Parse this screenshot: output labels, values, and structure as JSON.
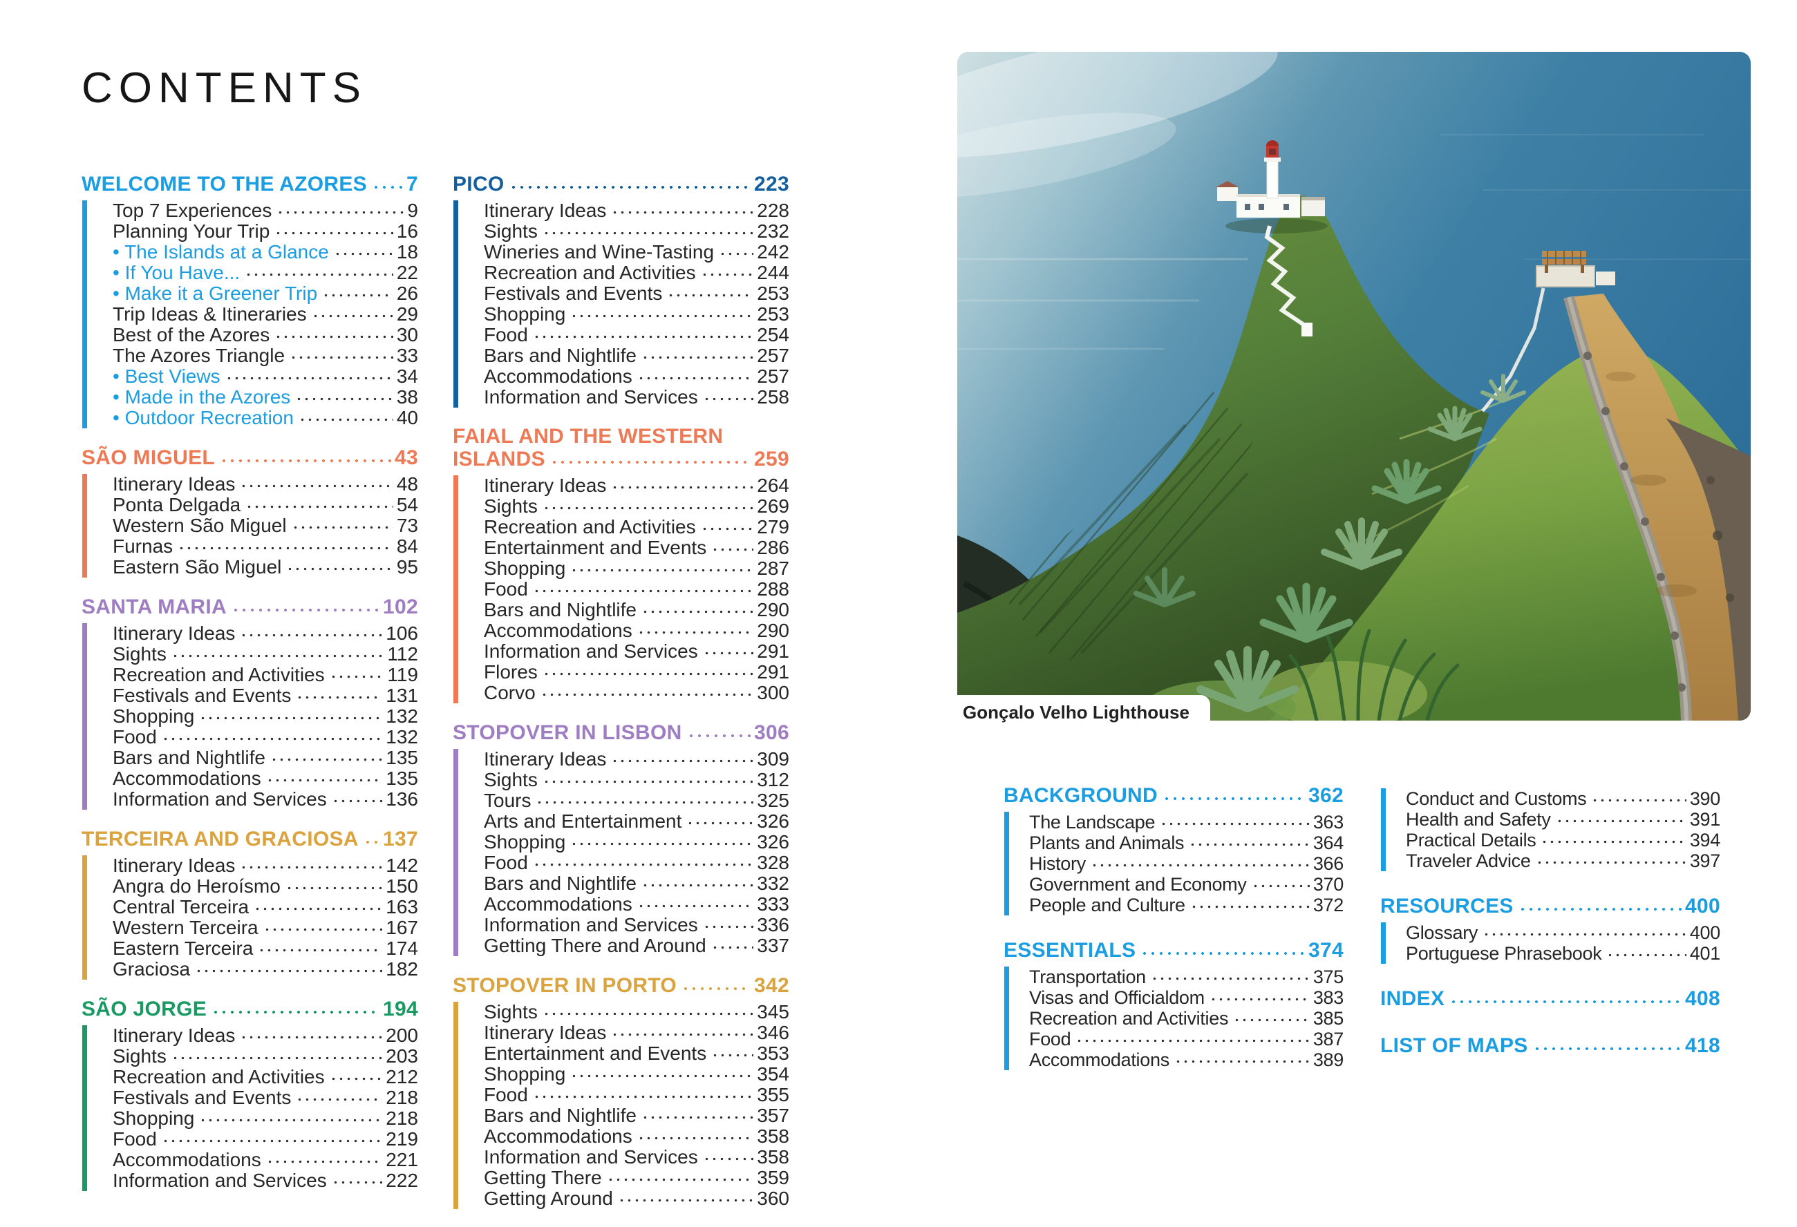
{
  "title": "CONTENTS",
  "photo": {
    "caption": "Gonçalo Velho Lighthouse"
  },
  "colors": {
    "bright_blue": "#1b9de2",
    "dark_blue": "#14609f",
    "orange": "#ee7a55",
    "purple": "#9f7dc3",
    "amber": "#dba33e",
    "green": "#189a62",
    "ink": "#2d2d2d"
  },
  "columns": {
    "col1": [
      {
        "title": "WELCOME TO THE AZORES",
        "page": "7",
        "color": "bright_blue",
        "items": [
          {
            "label": "Top 7 Experiences",
            "page": "9"
          },
          {
            "label": "Planning Your Trip",
            "page": "16"
          },
          {
            "label": "The Islands at a Glance",
            "page": "18",
            "bullet": true
          },
          {
            "label": "If You Have...",
            "page": "22",
            "bullet": true
          },
          {
            "label": "Make it a Greener Trip",
            "page": "26",
            "bullet": true
          },
          {
            "label": "Trip Ideas & Itineraries",
            "page": "29"
          },
          {
            "label": "Best of the Azores",
            "page": "30"
          },
          {
            "label": "The Azores Triangle",
            "page": "33"
          },
          {
            "label": "Best Views",
            "page": "34",
            "bullet": true
          },
          {
            "label": "Made in the Azores",
            "page": "38",
            "bullet": true
          },
          {
            "label": "Outdoor Recreation",
            "page": "40",
            "bullet": true
          }
        ]
      },
      {
        "title": "SÃO MIGUEL",
        "page": "43",
        "color": "orange",
        "items": [
          {
            "label": "Itinerary Ideas",
            "page": "48"
          },
          {
            "label": "Ponta Delgada",
            "page": "54"
          },
          {
            "label": "Western São Miguel",
            "page": "73"
          },
          {
            "label": "Furnas",
            "page": "84"
          },
          {
            "label": "Eastern São Miguel",
            "page": "95"
          }
        ]
      },
      {
        "title": "SANTA MARIA",
        "page": "102",
        "color": "purple",
        "items": [
          {
            "label": "Itinerary Ideas",
            "page": "106"
          },
          {
            "label": "Sights",
            "page": "112"
          },
          {
            "label": "Recreation and Activities",
            "page": "119"
          },
          {
            "label": "Festivals and Events",
            "page": "131"
          },
          {
            "label": "Shopping",
            "page": "132"
          },
          {
            "label": "Food",
            "page": "132"
          },
          {
            "label": "Bars and Nightlife",
            "page": "135"
          },
          {
            "label": "Accommodations",
            "page": "135"
          },
          {
            "label": "Information and Services",
            "page": "136"
          }
        ]
      },
      {
        "title": "TERCEIRA AND GRACIOSA",
        "page": "137",
        "color": "amber",
        "items": [
          {
            "label": "Itinerary Ideas",
            "page": "142"
          },
          {
            "label": "Angra do Heroísmo",
            "page": "150"
          },
          {
            "label": "Central Terceira",
            "page": "163"
          },
          {
            "label": "Western Terceira",
            "page": "167"
          },
          {
            "label": "Eastern Terceira",
            "page": "174"
          },
          {
            "label": "Graciosa",
            "page": "182"
          }
        ]
      },
      {
        "title": "SÃO JORGE",
        "page": "194",
        "color": "green",
        "items": [
          {
            "label": "Itinerary Ideas",
            "page": "200"
          },
          {
            "label": "Sights",
            "page": "203"
          },
          {
            "label": "Recreation and Activities",
            "page": "212"
          },
          {
            "label": "Festivals and Events",
            "page": "218"
          },
          {
            "label": "Shopping",
            "page": "218"
          },
          {
            "label": "Food",
            "page": "219"
          },
          {
            "label": "Accommodations",
            "page": "221"
          },
          {
            "label": "Information and Services",
            "page": "222"
          }
        ]
      }
    ],
    "col2": [
      {
        "title": "PICO",
        "page": "223",
        "color": "dark_blue",
        "items": [
          {
            "label": "Itinerary Ideas",
            "page": "228"
          },
          {
            "label": "Sights",
            "page": "232"
          },
          {
            "label": "Wineries and Wine-Tasting",
            "page": "242"
          },
          {
            "label": "Recreation and Activities",
            "page": "244"
          },
          {
            "label": "Festivals and Events",
            "page": "253"
          },
          {
            "label": "Shopping",
            "page": "253"
          },
          {
            "label": "Food",
            "page": "254"
          },
          {
            "label": "Bars and Nightlife",
            "page": "257"
          },
          {
            "label": "Accommodations",
            "page": "257"
          },
          {
            "label": "Information and Services",
            "page": "258"
          }
        ]
      },
      {
        "title_lines": [
          "FAIAL AND THE WESTERN",
          "ISLANDS"
        ],
        "page": "259",
        "color": "orange",
        "items": [
          {
            "label": "Itinerary Ideas",
            "page": "264"
          },
          {
            "label": "Sights",
            "page": "269"
          },
          {
            "label": "Recreation and Activities",
            "page": "279"
          },
          {
            "label": "Entertainment and Events",
            "page": "286"
          },
          {
            "label": "Shopping",
            "page": "287"
          },
          {
            "label": "Food",
            "page": "288"
          },
          {
            "label": "Bars and Nightlife",
            "page": "290"
          },
          {
            "label": "Accommodations",
            "page": "290"
          },
          {
            "label": "Information and Services",
            "page": "291"
          },
          {
            "label": "Flores",
            "page": "291"
          },
          {
            "label": "Corvo",
            "page": "300"
          }
        ]
      },
      {
        "title": "STOPOVER IN LISBON",
        "page": "306",
        "color": "purple",
        "items": [
          {
            "label": "Itinerary Ideas",
            "page": "309"
          },
          {
            "label": "Sights",
            "page": "312"
          },
          {
            "label": "Tours",
            "page": "325"
          },
          {
            "label": "Arts and Entertainment",
            "page": "326"
          },
          {
            "label": "Shopping",
            "page": "326"
          },
          {
            "label": "Food",
            "page": "328"
          },
          {
            "label": "Bars and Nightlife",
            "page": "332"
          },
          {
            "label": "Accommodations",
            "page": "333"
          },
          {
            "label": "Information and Services",
            "page": "336"
          },
          {
            "label": "Getting There and Around",
            "page": "337"
          }
        ]
      },
      {
        "title": "STOPOVER IN PORTO",
        "page": "342",
        "color": "amber",
        "items": [
          {
            "label": "Sights",
            "page": "345"
          },
          {
            "label": "Itinerary Ideas",
            "page": "346"
          },
          {
            "label": "Entertainment and Events",
            "page": "353"
          },
          {
            "label": "Shopping",
            "page": "354"
          },
          {
            "label": "Food",
            "page": "355"
          },
          {
            "label": "Bars and Nightlife",
            "page": "357"
          },
          {
            "label": "Accommodations",
            "page": "358"
          },
          {
            "label": "Information and Services",
            "page": "358"
          },
          {
            "label": "Getting There",
            "page": "359"
          },
          {
            "label": "Getting Around",
            "page": "360"
          }
        ]
      }
    ],
    "col3": [
      {
        "title": "BACKGROUND",
        "page": "362",
        "color": "bright_blue",
        "items": [
          {
            "label": "The Landscape",
            "page": "363"
          },
          {
            "label": "Plants and Animals",
            "page": "364"
          },
          {
            "label": "History",
            "page": "366"
          },
          {
            "label": "Government and Economy",
            "page": "370"
          },
          {
            "label": "People and Culture",
            "page": "372"
          }
        ]
      },
      {
        "title": "ESSENTIALS",
        "page": "374",
        "color": "bright_blue",
        "items": [
          {
            "label": "Transportation",
            "page": "375"
          },
          {
            "label": "Visas and Officialdom",
            "page": "383"
          },
          {
            "label": "Recreation and Activities",
            "page": "385"
          },
          {
            "label": "Food",
            "page": "387"
          },
          {
            "label": "Accommodations",
            "page": "389"
          }
        ]
      }
    ],
    "col4": [
      {
        "color": "bright_blue",
        "items": [
          {
            "label": "Conduct and Customs",
            "page": "390"
          },
          {
            "label": "Health and Safety",
            "page": "391"
          },
          {
            "label": "Practical Details",
            "page": "394"
          },
          {
            "label": "Traveler Advice",
            "page": "397"
          }
        ]
      },
      {
        "title": "RESOURCES",
        "page": "400",
        "color": "bright_blue",
        "items": [
          {
            "label": "Glossary",
            "page": "400"
          },
          {
            "label": "Portuguese Phrasebook",
            "page": "401"
          }
        ]
      },
      {
        "title": "INDEX",
        "page": "408",
        "color": "bright_blue"
      },
      {
        "title": "LIST OF MAPS",
        "page": "418",
        "color": "bright_blue"
      }
    ]
  }
}
